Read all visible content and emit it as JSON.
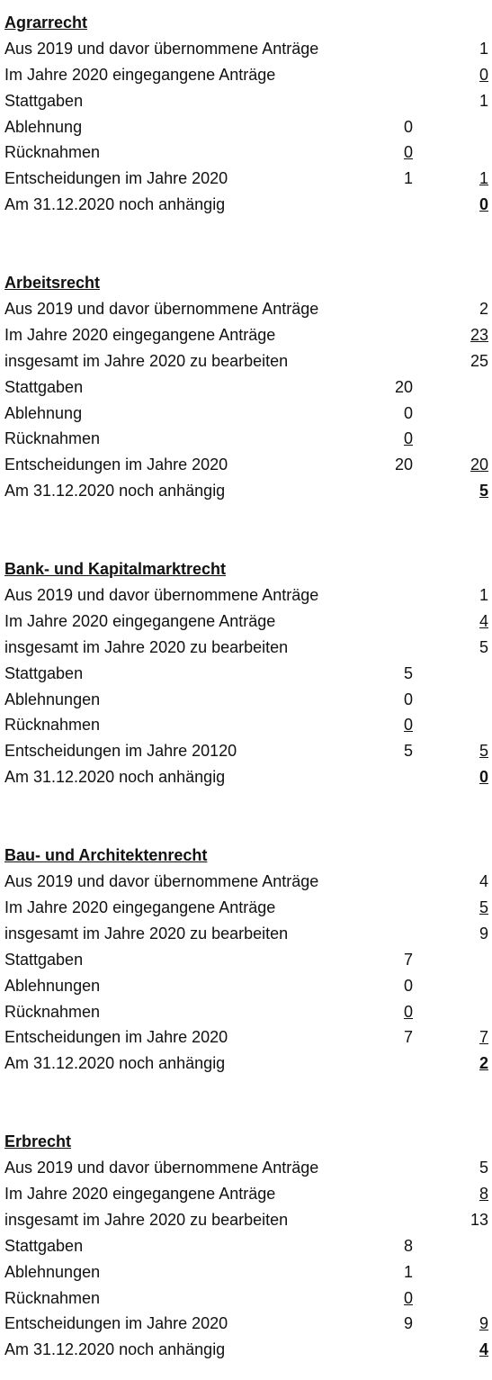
{
  "sections": [
    {
      "title": "Agrarrecht",
      "rows": [
        {
          "label": "Aus 2019 und davor übernommene Anträge",
          "right": "1"
        },
        {
          "label": "Im Jahre 2020 eingegangene Anträge",
          "right": "0",
          "right_style": "underline"
        },
        {
          "label": "Stattgaben",
          "right": "1"
        },
        {
          "label": "Ablehnung",
          "mid": "0"
        },
        {
          "label": "Rücknahmen",
          "mid": "0",
          "mid_style": "underline"
        },
        {
          "label": "Entscheidungen im Jahre 2020",
          "mid": "1",
          "right": "1",
          "right_style": "underline"
        },
        {
          "label": "Am 31.12.2020 noch anhängig",
          "right": "0",
          "right_style": "underline bold"
        }
      ]
    },
    {
      "title": "Arbeitsrecht",
      "rows": [
        {
          "label": "Aus 2019 und davor übernommene Anträge",
          "right": "2"
        },
        {
          "label": "Im Jahre 2020 eingegangene Anträge",
          "right": "23",
          "right_style": "underline"
        },
        {
          "label": "insgesamt im Jahre 2020 zu bearbeiten",
          "right": "25"
        },
        {
          "label": "Stattgaben",
          "mid": "20"
        },
        {
          "label": "Ablehnung",
          "mid": "0"
        },
        {
          "label": "Rücknahmen",
          "mid": "0",
          "mid_style": "underline"
        },
        {
          "label": "Entscheidungen im Jahre 2020",
          "mid": "20",
          "right": "20",
          "right_style": "underline"
        },
        {
          "label": "Am 31.12.2020 noch anhängig",
          "right": "5",
          "right_style": "underline bold"
        }
      ]
    },
    {
      "title": "Bank- und Kapitalmarktrecht",
      "rows": [
        {
          "label": "Aus 2019 und davor übernommene Anträge",
          "right": "1"
        },
        {
          "label": "Im Jahre 2020 eingegangene Anträge",
          "right": "4",
          "right_style": "underline"
        },
        {
          "label": "insgesamt im Jahre 2020 zu bearbeiten",
          "right": "5"
        },
        {
          "label": "Stattgaben",
          "mid": "5"
        },
        {
          "label": "Ablehnungen",
          "mid": "0"
        },
        {
          "label": "Rücknahmen",
          "mid": "0",
          "mid_style": "underline"
        },
        {
          "label": "Entscheidungen im Jahre 20120",
          "mid": "5",
          "right": "5",
          "right_style": "underline"
        },
        {
          "label": "Am 31.12.2020 noch anhängig",
          "right": "0",
          "right_style": "underline bold"
        }
      ]
    },
    {
      "title": "Bau- und Architektenrecht",
      "rows": [
        {
          "label": "Aus 2019 und davor übernommene Anträge",
          "right": "4"
        },
        {
          "label": "Im Jahre 2020 eingegangene Anträge",
          "right": "5",
          "right_style": "underline"
        },
        {
          "label": "insgesamt im Jahre 2020 zu bearbeiten",
          "right": "9"
        },
        {
          "label": "Stattgaben",
          "mid": "7"
        },
        {
          "label": "Ablehnungen",
          "mid": "0"
        },
        {
          "label": "Rücknahmen",
          "mid": "0",
          "mid_style": "underline"
        },
        {
          "label": "Entscheidungen im Jahre 2020",
          "mid": "7",
          "right": "7",
          "right_style": "underline"
        },
        {
          "label": "Am 31.12.2020 noch anhängig",
          "right": "2",
          "right_style": "underline bold"
        }
      ]
    },
    {
      "title": "Erbrecht",
      "rows": [
        {
          "label": "Aus 2019 und davor übernommene Anträge",
          "right": "5"
        },
        {
          "label": "Im Jahre 2020 eingegangene Anträge",
          "right": "8",
          "right_style": "underline"
        },
        {
          "label": "insgesamt im Jahre 2020 zu bearbeiten",
          "right": "13"
        },
        {
          "label": "Stattgaben",
          "mid": "8"
        },
        {
          "label": "Ablehnungen",
          "mid": "1"
        },
        {
          "label": "Rücknahmen",
          "mid": "0",
          "mid_style": "underline"
        },
        {
          "label": "Entscheidungen im Jahre 2020",
          "mid": "9",
          "right": "9",
          "right_style": "underline"
        },
        {
          "label": "Am 31.12.2020 noch anhängig",
          "right": "4",
          "right_style": "underline bold"
        }
      ]
    }
  ]
}
